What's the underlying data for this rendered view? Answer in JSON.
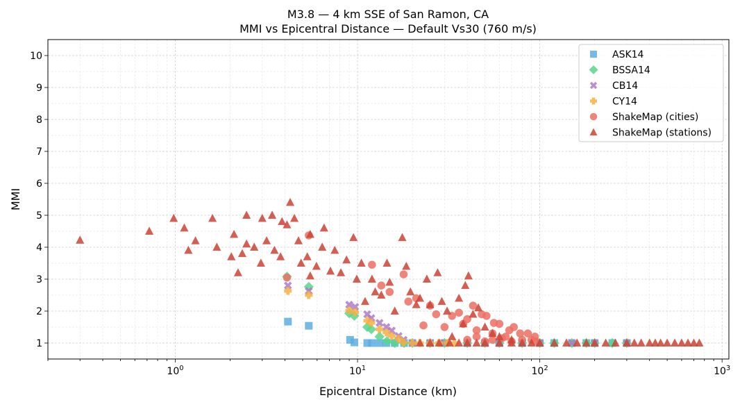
{
  "chart_data": {
    "type": "scatter",
    "title": "M3.8 — 4 km SSE of San Ramon, CA",
    "subtitle": "MMI vs Epicentral Distance — Default Vs30 (760 m/s)",
    "xlabel": "Epicentral Distance (km)",
    "ylabel": "MMI",
    "xscale": "log",
    "xlim": [
      0.2,
      1090
    ],
    "ylim": [
      0.5,
      10.5
    ],
    "x_ticks": [
      1,
      10,
      100,
      1000
    ],
    "x_tick_labels": [
      "10^0",
      "10^1",
      "10^2",
      "10^3"
    ],
    "y_ticks": [
      1,
      2,
      3,
      4,
      5,
      6,
      7,
      8,
      9,
      10
    ],
    "y_tick_labels": [
      "1",
      "2",
      "3",
      "4",
      "5",
      "6",
      "7",
      "8",
      "9",
      "10"
    ],
    "grid": true,
    "legend_position": "top-right",
    "series": [
      {
        "name": "ASK14",
        "marker": "square",
        "color": "#5dade2",
        "x": [
          4.15,
          5.4,
          9.1,
          9.6,
          11.3,
          12,
          13.2,
          14.4,
          16,
          18,
          20,
          25,
          30,
          40,
          50,
          60,
          80,
          100,
          120,
          150,
          180,
          200,
          250,
          300
        ],
        "y": [
          1.67,
          1.54,
          1.1,
          1.02,
          1,
          1,
          1,
          1,
          1,
          1,
          1,
          1,
          1,
          1,
          1,
          1,
          1,
          1,
          1,
          1,
          1,
          1,
          1,
          1
        ]
      },
      {
        "name": "BSSA14",
        "marker": "diamond",
        "color": "#58d68d",
        "x": [
          4.1,
          5.4,
          9.0,
          9.6,
          11.3,
          11.9,
          13.2,
          14.5,
          16,
          18,
          20,
          25,
          30,
          40,
          50,
          60,
          80,
          100,
          120,
          150,
          180,
          200,
          250,
          300
        ],
        "y": [
          3.08,
          2.76,
          1.93,
          1.85,
          1.5,
          1.43,
          1.2,
          1.06,
          1,
          1,
          1,
          1,
          1,
          1,
          1,
          1,
          1,
          1,
          1,
          1,
          1,
          1,
          1,
          1
        ]
      },
      {
        "name": "CB14",
        "marker": "x",
        "color": "#af7ac5",
        "x": [
          4.15,
          5.4,
          9.0,
          9.7,
          11.3,
          11.9,
          13.2,
          14.4,
          15.4,
          16.8,
          17.9,
          20,
          25,
          30,
          40,
          50,
          60,
          80,
          100,
          150,
          200,
          300
        ],
        "y": [
          2.8,
          2.63,
          2.2,
          2.13,
          1.9,
          1.78,
          1.63,
          1.5,
          1.39,
          1.22,
          1.1,
          1,
          1,
          1,
          1,
          1,
          1,
          1,
          1,
          1,
          1,
          1
        ]
      },
      {
        "name": "CY14",
        "marker": "plus",
        "color": "#f5b041",
        "x": [
          4.15,
          5.4,
          9.0,
          9.7,
          11.3,
          11.9,
          13.2,
          14.4,
          15.4,
          16.8,
          17.9,
          20,
          22,
          25,
          28,
          31,
          34
        ],
        "y": [
          2.63,
          2.5,
          2.02,
          1.96,
          1.7,
          1.63,
          1.43,
          1.33,
          1.22,
          1.13,
          1.02,
          1,
          1,
          1,
          1,
          1,
          1
        ]
      },
      {
        "name": "ShakeMap (cities)",
        "marker": "circle",
        "color": "#ec7063",
        "x": [
          4.1,
          5.4,
          12,
          13.5,
          15,
          17.9,
          19,
          21,
          23,
          25,
          27,
          30,
          33,
          36,
          38,
          40,
          43,
          45,
          48,
          51,
          55,
          56,
          60,
          65,
          68,
          72,
          78,
          86,
          90,
          94,
          40,
          45,
          50,
          55,
          62,
          70,
          80,
          95
        ],
        "y": [
          3.05,
          4.37,
          3.45,
          2.8,
          2.6,
          3.15,
          2.3,
          2.4,
          1.55,
          2.17,
          1.9,
          1.5,
          1.85,
          1.95,
          1.6,
          1.75,
          2.17,
          1.4,
          1.9,
          1.85,
          1.3,
          1.63,
          1.6,
          1.2,
          1.4,
          1.5,
          1.3,
          1.3,
          1.1,
          1.2,
          1.1,
          1.2,
          1.05,
          1.1,
          1.15,
          1.05,
          1.1,
          1.05
        ]
      },
      {
        "name": "ShakeMap (stations)",
        "marker": "triangle",
        "color": "#cb4335",
        "x": [
          0.3,
          0.72,
          0.98,
          1.12,
          1.18,
          1.29,
          1.6,
          1.69,
          2.03,
          2.1,
          2.21,
          2.33,
          2.46,
          2.46,
          2.71,
          3.0,
          2.95,
          3.17,
          3.4,
          3.5,
          3.85,
          3.78,
          4.1,
          4.27,
          4.5,
          4.74,
          4.9,
          5.3,
          5.5,
          5.5,
          5.95,
          6.55,
          6.4,
          7.1,
          7.5,
          8.1,
          8.7,
          9.5,
          9.9,
          10.5,
          11,
          12,
          12.5,
          13.5,
          14.5,
          15,
          16,
          17.6,
          18.5,
          19.5,
          21,
          22,
          24,
          25,
          27.5,
          29,
          31,
          33,
          36,
          38,
          39,
          40.6,
          43,
          46,
          50,
          55,
          60,
          70,
          22,
          25,
          28,
          32,
          36,
          40,
          45,
          50,
          60,
          70,
          80,
          90,
          100,
          120,
          140,
          160,
          180,
          200,
          230,
          260,
          300,
          330,
          360,
          400,
          430,
          460,
          500,
          550,
          600,
          650,
          700,
          750
        ],
        "y": [
          4.22,
          4.5,
          4.9,
          4.6,
          3.9,
          4.2,
          4.9,
          4.0,
          3.7,
          4.4,
          3.2,
          3.8,
          5.0,
          4.1,
          4.0,
          4.9,
          3.5,
          4.2,
          5.0,
          3.9,
          4.8,
          3.7,
          4.7,
          5.4,
          4.9,
          4.2,
          3.5,
          3.7,
          4.4,
          3.1,
          3.4,
          4.6,
          4.0,
          3.25,
          3.9,
          3.2,
          3.6,
          4.3,
          3.0,
          3.5,
          2.3,
          3.0,
          2.6,
          2.5,
          3.5,
          2.9,
          2.0,
          4.3,
          3.4,
          2.6,
          2.2,
          2.4,
          3.0,
          2.2,
          3.2,
          2.3,
          2.0,
          1.2,
          2.4,
          1.6,
          2.8,
          3.1,
          1.9,
          2.1,
          1.5,
          1.3,
          1.2,
          1.1,
          1,
          1,
          1,
          1,
          1,
          1,
          1,
          1,
          1,
          1,
          1,
          1,
          1,
          1,
          1,
          1,
          1,
          1,
          1,
          1,
          1,
          1,
          1,
          1,
          1,
          1,
          1,
          1,
          1,
          1,
          1,
          1
        ]
      }
    ]
  }
}
